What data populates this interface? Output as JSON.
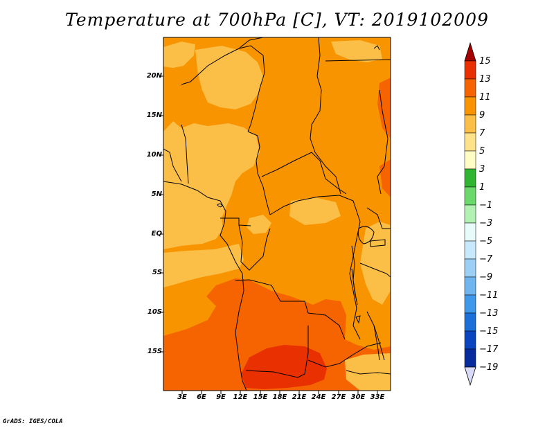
{
  "title": "Temperature at 700hPa [C], VT: 2019102009",
  "credit": "GrADS: IGES/COLA",
  "lat_labels": [
    "20N",
    "15N",
    "10N",
    "5N",
    "EQ",
    "5S",
    "10S",
    "15S"
  ],
  "lon_labels": [
    "3E",
    "6E",
    "9E",
    "12E",
    "15E",
    "18E",
    "21E",
    "24E",
    "27E",
    "30E",
    "33E"
  ],
  "colorbar": {
    "labels": [
      "15",
      "13",
      "11",
      "9",
      "7",
      "5",
      "3",
      "1",
      "−1",
      "−3",
      "−5",
      "−7",
      "−9",
      "−11",
      "−13",
      "−15",
      "−17",
      "−19"
    ],
    "colors": [
      "#a50000",
      "#e83000",
      "#f56400",
      "#f89400",
      "#fbbf47",
      "#fde28a",
      "#fffcc4",
      "#2fb52f",
      "#6ad86a",
      "#b2f1b2",
      "#e8fbfb",
      "#c7e9fb",
      "#9ccff5",
      "#6fb6f0",
      "#3e99ea",
      "#1b6fd9",
      "#0a45c0",
      "#072a9c",
      "#061366",
      "#d9d9f8"
    ]
  },
  "map": {
    "colors": {
      "t7": "#fbbf47",
      "t9": "#f89400",
      "t11": "#f56400",
      "t13": "#e83000",
      "border": "#000000"
    }
  }
}
